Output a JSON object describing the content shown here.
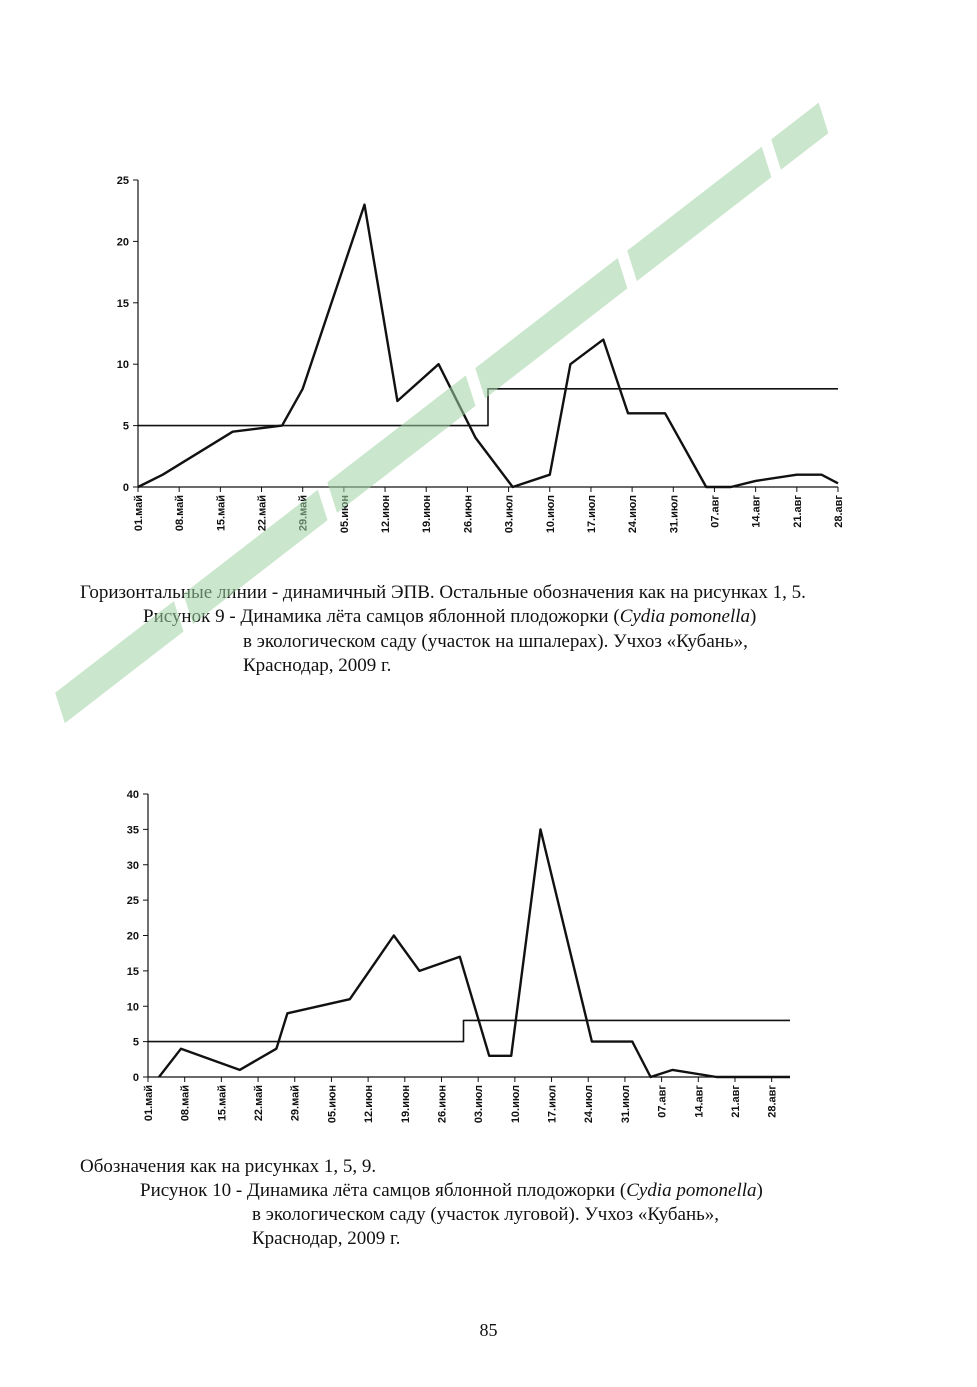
{
  "figure9": {
    "note": "Горизонтальные линии - динамичный ЭПВ. Остальные обозначения как на рисунках 1, 5.",
    "caption_line1_prefix": "Рисунок 9 - Динамика лёта самцов яблонной плодожорки (",
    "species": "Cydia pomonella",
    "caption_line1_suffix": ")",
    "caption_line2": "в экологическом саду (участок на шпалерах). Учхоз «Кубань»,",
    "caption_line3": "Краснодар, 2009 г."
  },
  "figure10": {
    "note": "Обозначения как на рисунках 1, 5, 9.",
    "caption_line1_prefix": "Рисунок 10 - Динамика лёта самцов яблонной плодожорки (",
    "species": "Cydia pomonella",
    "caption_line1_suffix": ")",
    "caption_line2": "в экологическом саду (участок луговой).  Учхоз «Кубань»,",
    "caption_line3": "Краснодар, 2009 г."
  },
  "page_number": "85",
  "colors": {
    "line": "#111111",
    "watermark": "#9fd3a3"
  },
  "chart_data": [
    {
      "type": "line",
      "title": "",
      "xlabel": "",
      "ylabel": "",
      "ylim": [
        0,
        25
      ],
      "yticks": [
        0,
        5,
        10,
        15,
        20,
        25
      ],
      "x_range": [
        0,
        17
      ],
      "categories": [
        "01.май",
        "08.май",
        "15.май",
        "22.май",
        "29.май",
        "05.июн",
        "12.июн",
        "19.июн",
        "26.июн",
        "03.июл",
        "10.июл",
        "17.июл",
        "24.июл",
        "31.июл",
        "07.авг",
        "14.авг",
        "21.авг",
        "28.авг"
      ],
      "series": [
        {
          "name": "Cydia pomonella",
          "x": [
            0,
            0.6,
            2.3,
            3.5,
            4.0,
            4.7,
            5.5,
            6.3,
            7.3,
            8.2,
            9.1,
            10.0,
            10.5,
            11.3,
            11.9,
            12.8,
            13.8,
            14.4,
            15.0,
            16.0,
            16.6,
            17.0
          ],
          "y": [
            0,
            1,
            4.5,
            5,
            8,
            15,
            23,
            7,
            10,
            4,
            0,
            1,
            10,
            12,
            6,
            6,
            0,
            0,
            0.5,
            1,
            1,
            0.3
          ]
        },
        {
          "name": "динамичный ЭПВ",
          "step": true,
          "x": [
            0,
            8.5,
            8.5,
            17.0
          ],
          "y": [
            5,
            5,
            8,
            8
          ]
        }
      ]
    },
    {
      "type": "line",
      "title": "",
      "xlabel": "",
      "ylabel": "",
      "ylim": [
        0,
        40
      ],
      "yticks": [
        0,
        5,
        10,
        15,
        20,
        25,
        30,
        35,
        40
      ],
      "x_range": [
        0,
        17.5
      ],
      "categories": [
        "01.май",
        "08.май",
        "15.май",
        "22.май",
        "29.май",
        "05.июн",
        "12.июн",
        "19.июн",
        "26.июн",
        "03.июл",
        "10.июл",
        "17.июл",
        "24.июл",
        "31.июл",
        "07.авг",
        "14.авг",
        "21.авг",
        "28.авг"
      ],
      "series": [
        {
          "name": "Cydia pomonella",
          "x": [
            0.3,
            0.9,
            2.5,
            3.5,
            3.8,
            5.5,
            6.7,
            7.4,
            8.5,
            9.3,
            9.9,
            10.7,
            12.1,
            13.2,
            13.7,
            14.3,
            15.5,
            17.5
          ],
          "y": [
            0,
            4,
            1,
            4,
            9,
            11,
            20,
            15,
            17,
            3,
            3,
            35,
            5,
            5,
            0,
            1,
            0,
            0
          ]
        },
        {
          "name": "динамичный ЭПВ",
          "step": true,
          "x": [
            0,
            8.6,
            8.6,
            17.5
          ],
          "y": [
            5,
            5,
            8,
            8
          ]
        }
      ]
    }
  ]
}
